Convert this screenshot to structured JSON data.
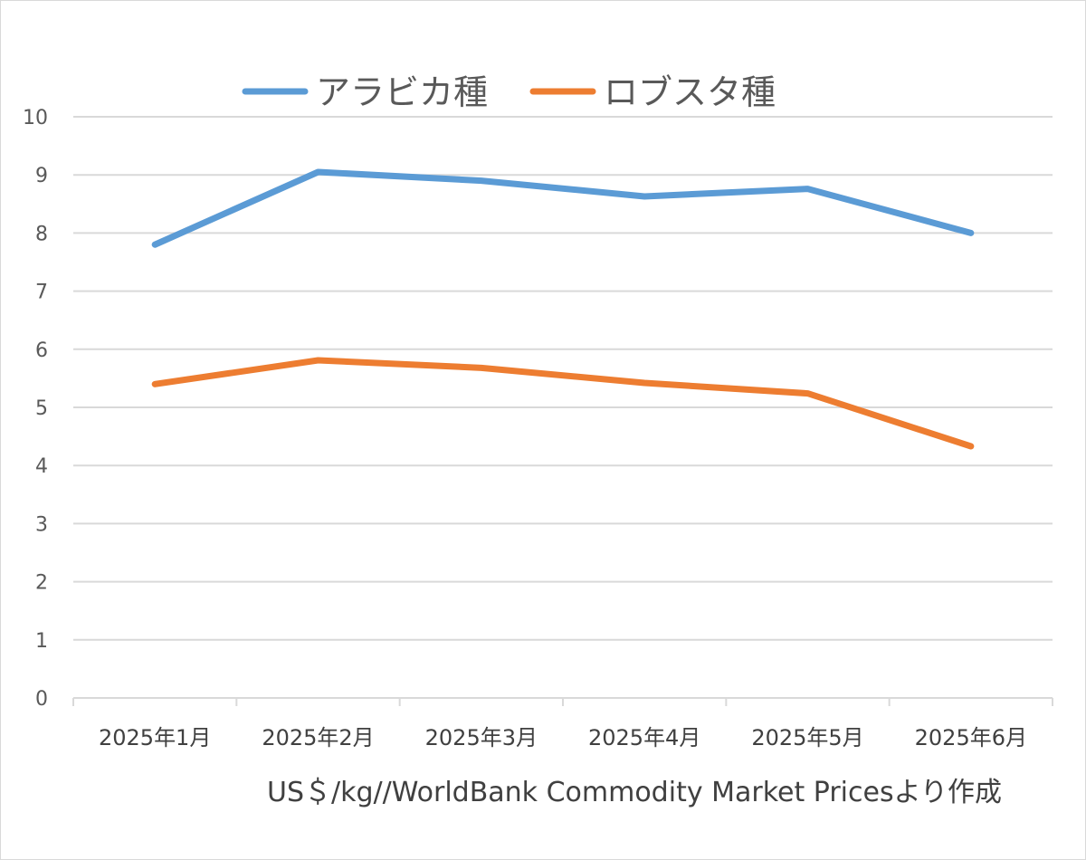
{
  "chart_data": {
    "type": "line",
    "title": "",
    "xlabel": "US＄/kg//WorldBank Commodity Market Pricesより作成",
    "ylabel": "",
    "categories": [
      "2025年1月",
      "2025年2月",
      "2025年3月",
      "2025年4月",
      "2025年5月",
      "2025年6月"
    ],
    "yticks": [
      "0",
      "1",
      "2",
      "3",
      "4",
      "5",
      "6",
      "7",
      "8",
      "9",
      "10"
    ],
    "ylim": [
      0,
      10
    ],
    "grid": true,
    "legend_position": "top",
    "series": [
      {
        "name": "アラビカ種",
        "color": "#5b9bd5",
        "values": [
          7.8,
          9.05,
          8.9,
          8.63,
          8.76,
          8.0
        ]
      },
      {
        "name": "ロブスタ種",
        "color": "#ed7d31",
        "values": [
          5.4,
          5.81,
          5.68,
          5.42,
          5.24,
          4.33
        ]
      }
    ]
  }
}
